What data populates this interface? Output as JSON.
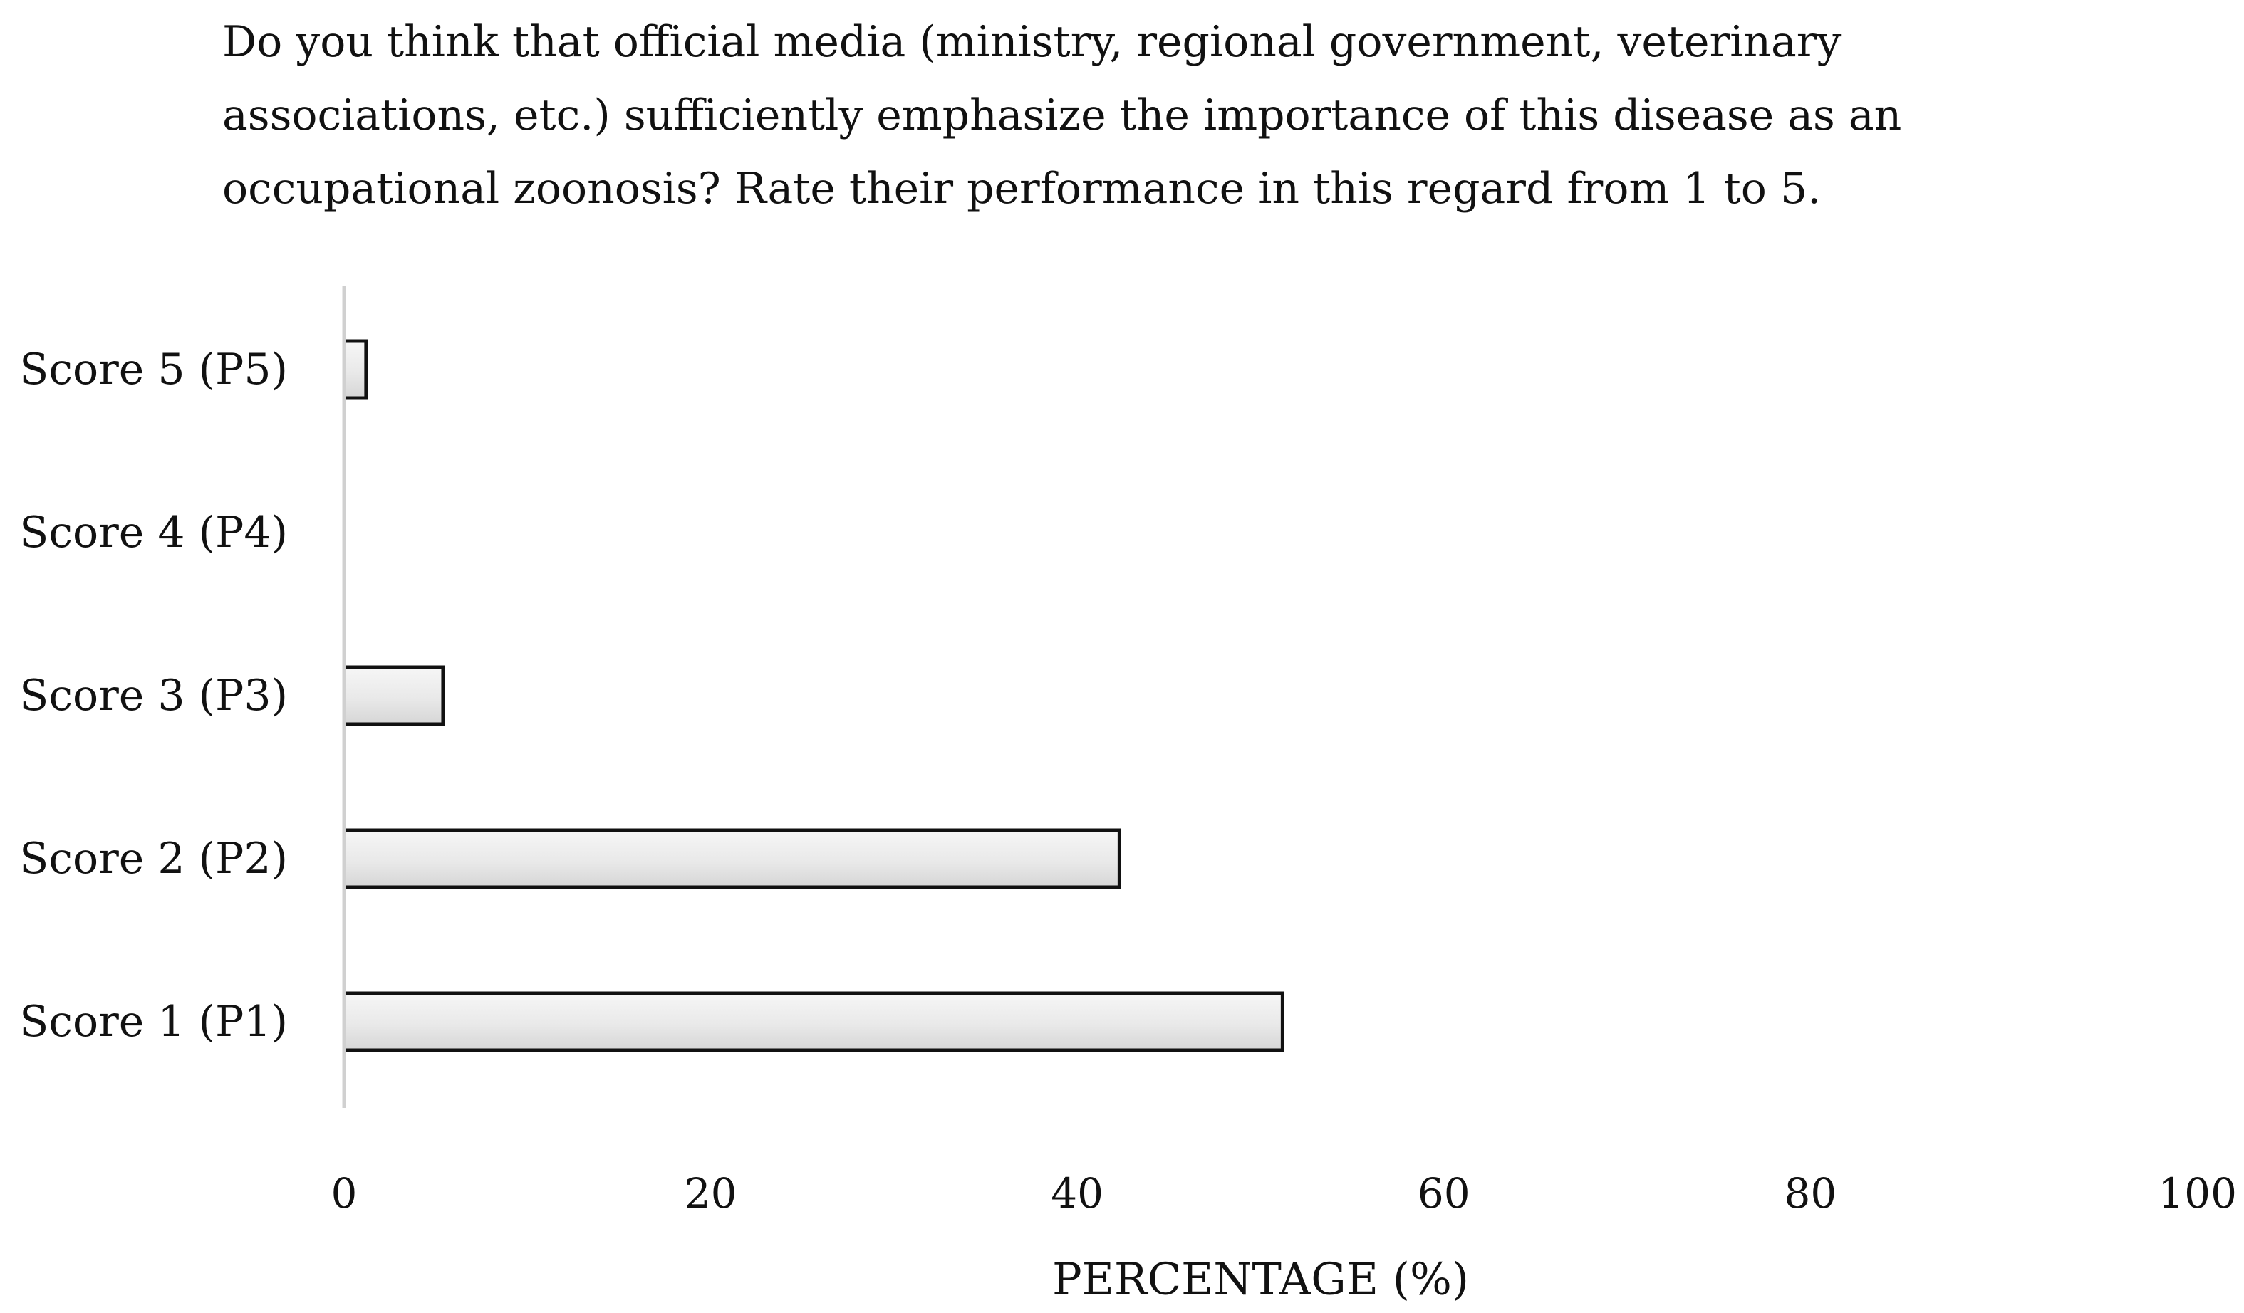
{
  "chart_data": {
    "type": "bar",
    "orientation": "horizontal",
    "title_lines": [
      "Do you think that official media (ministry, regional government, veterinary",
      "associations, etc.) sufficiently emphasize the importance of this disease as an",
      "occupational zoonosis? Rate their performance in this regard from 1 to 5."
    ],
    "categories": [
      "Score 5 (P5)",
      "Score 4 (P4)",
      "Score 3 (P3)",
      "Score 2 (P2)",
      "Score 1 (P1)"
    ],
    "values": [
      1.2,
      0,
      5.4,
      42.3,
      51.2
    ],
    "xlabel": "PERCENTAGE (%)",
    "ylabel": "",
    "xlim": [
      0,
      100
    ],
    "xticks": [
      0,
      20,
      40,
      60,
      80,
      100
    ],
    "grid": false,
    "legend": "none",
    "colors": {
      "bar_fill_light": "#f7f7f7",
      "bar_fill_dark": "#d9d9d9",
      "bar_stroke": "#111111",
      "axis_line": "#d0d0d0",
      "text": "#111111"
    }
  }
}
